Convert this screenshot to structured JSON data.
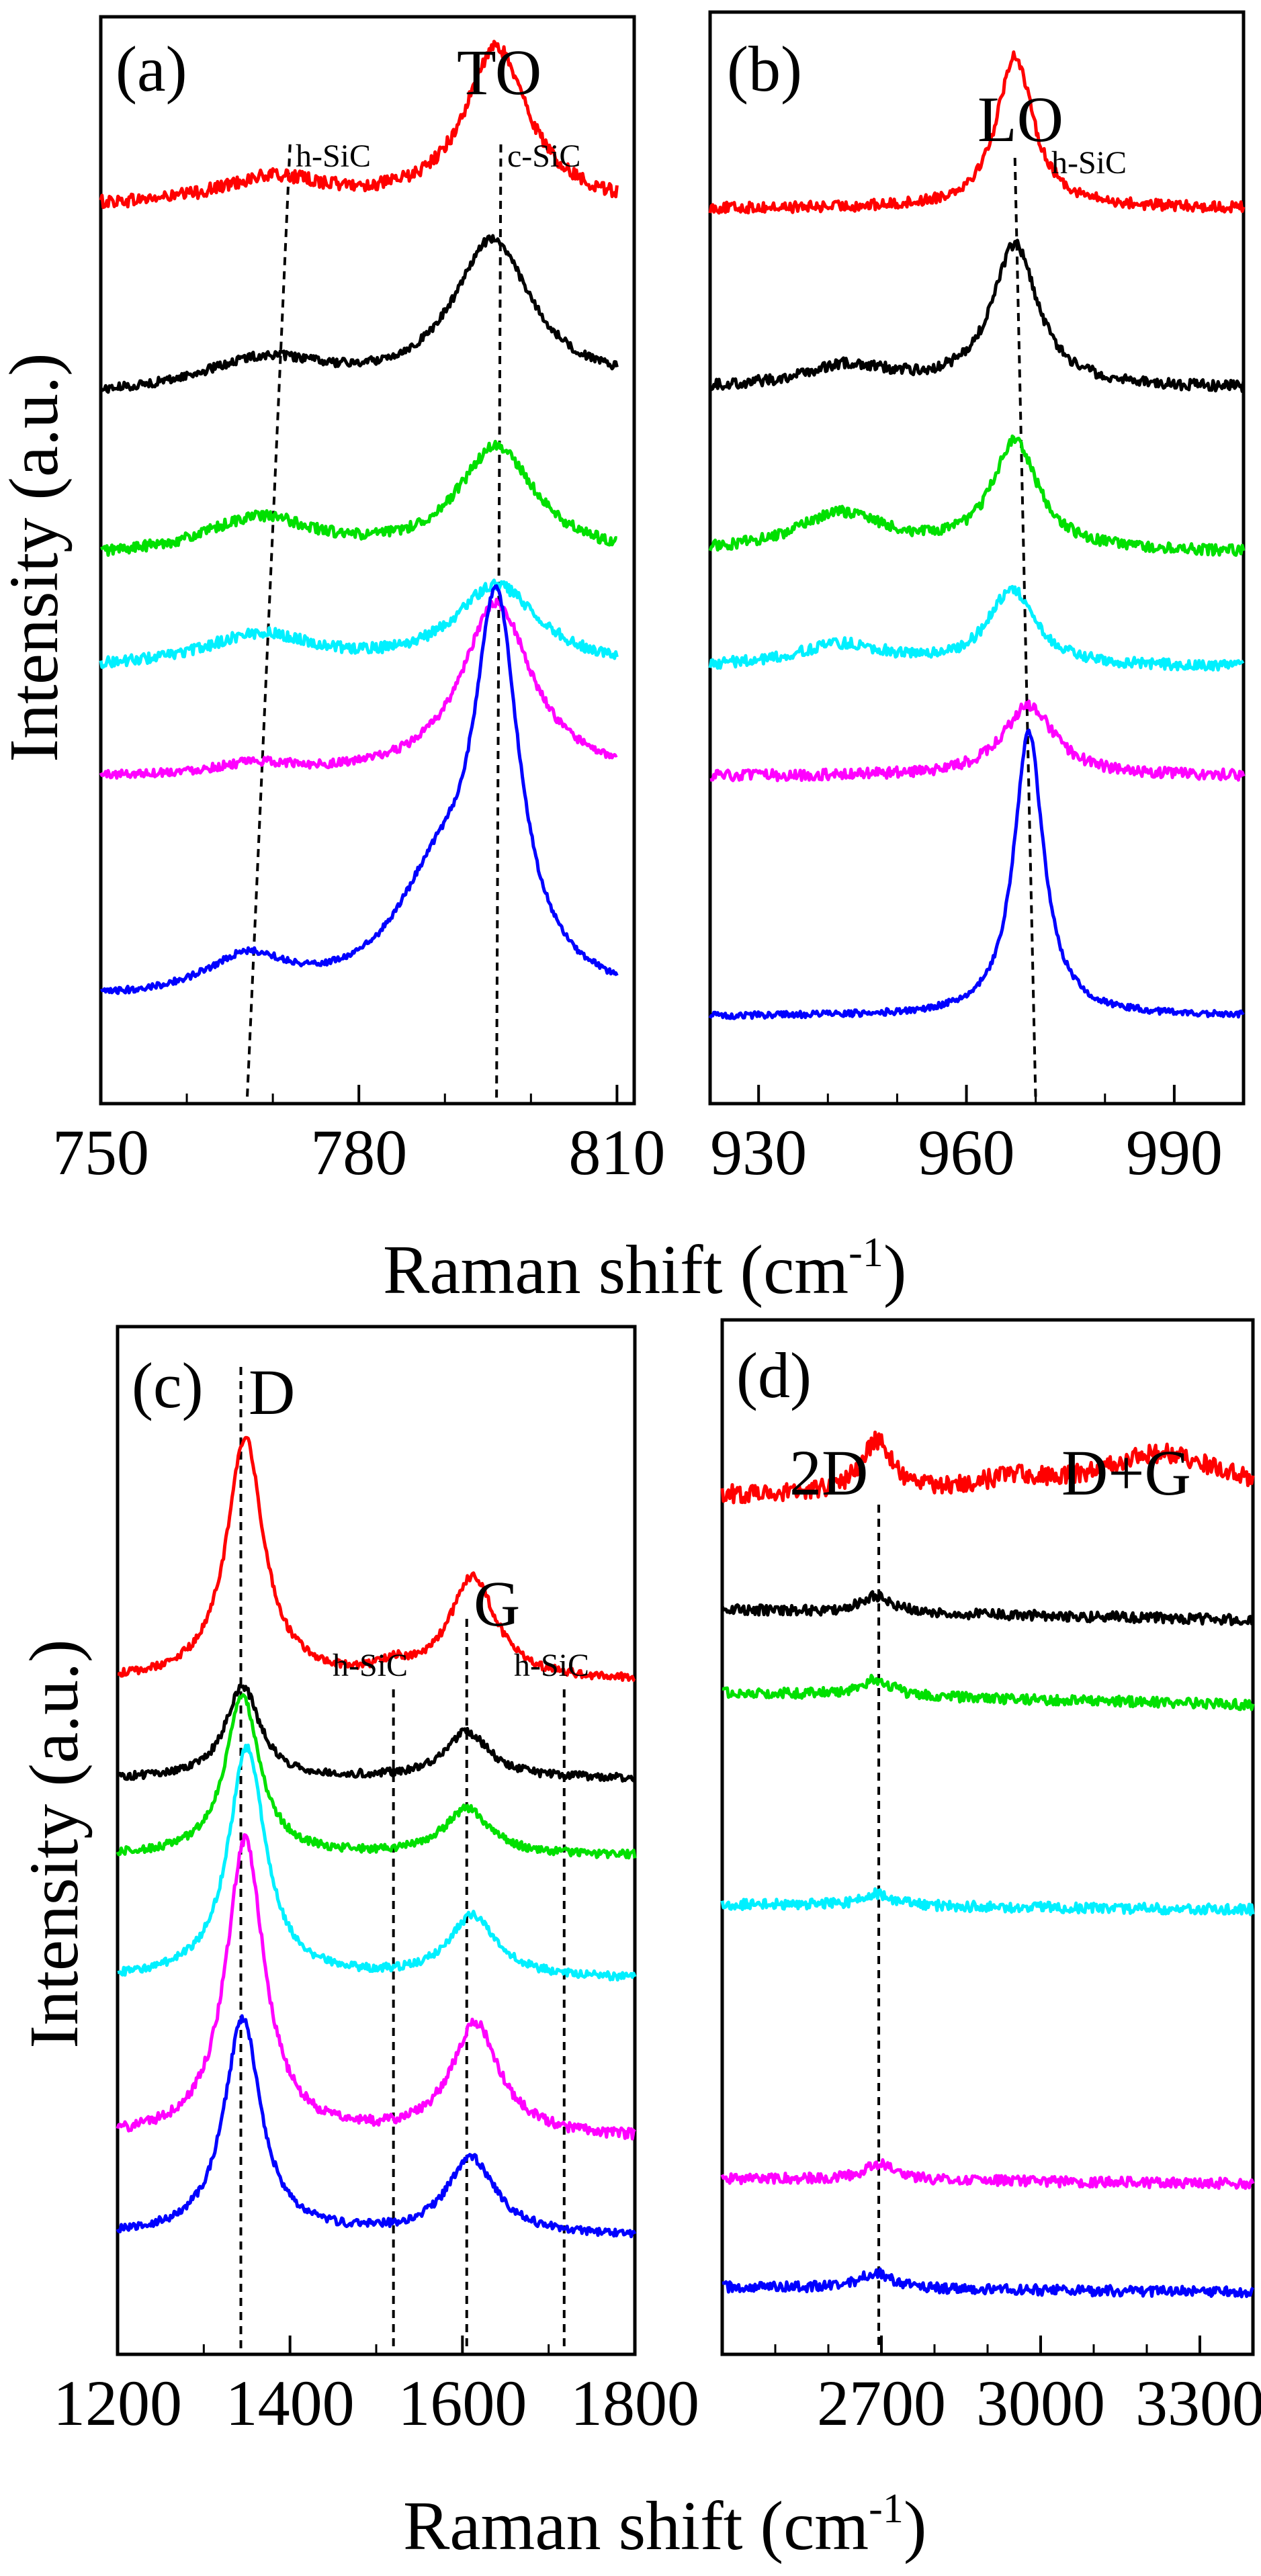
{
  "figure": {
    "x_axis_title_top": "Raman shift (cm",
    "x_axis_title_bottom": "Raman shift (cm",
    "x_axis_title_sup": "-1",
    "x_axis_title_close": ")",
    "y_axis_title_top": "Intensity (a.u.)",
    "y_axis_title_bottom": "Intensity (a.u.)"
  },
  "series_colors": [
    "#ff0000",
    "#000000",
    "#00e000",
    "#00f0ff",
    "#ff00ff",
    "#0000ff"
  ],
  "chart_data": [
    {
      "id": "a",
      "type": "line",
      "panel_label": "(a)",
      "xlim": [
        750,
        812
      ],
      "x_ticks": [
        750,
        780,
        810
      ],
      "x_minor_step": 10,
      "y_ticks": [],
      "xlabel": "Raman shift (cm-1)",
      "ylabel": "Intensity (a.u.)",
      "peak_labels": [
        {
          "text": "TO",
          "x": 796
        }
      ],
      "reference_lines": [
        {
          "label": "h-SiC",
          "x_top": 772,
          "x_bottom": 767
        },
        {
          "label": "c-SiC",
          "x_top": 796.5,
          "x_bottom": 796
        }
      ],
      "x_range": [
        750,
        810
      ],
      "series": [
        {
          "name": "red",
          "color": "#ff0000",
          "baseline": 0.825,
          "noise": 0.006,
          "peaks": [
            {
              "x": 796,
              "h": 0.145,
              "w": 4.5
            },
            {
              "x": 770,
              "h": 0.025,
              "w": 8
            }
          ],
          "tilt": 0.0
        },
        {
          "name": "black",
          "color": "#000000",
          "baseline": 0.65,
          "noise": 0.004,
          "peaks": [
            {
              "x": 795.5,
              "h": 0.135,
              "w": 5.5
            },
            {
              "x": 769,
              "h": 0.03,
              "w": 9
            }
          ],
          "tilt": 0.01
        },
        {
          "name": "green",
          "color": "#00e000",
          "baseline": 0.502,
          "noise": 0.005,
          "peaks": [
            {
              "x": 796,
              "h": 0.1,
              "w": 5.5
            },
            {
              "x": 768.5,
              "h": 0.035,
              "w": 8
            }
          ],
          "tilt": 0.0
        },
        {
          "name": "cyan",
          "color": "#00f0ff",
          "baseline": 0.4,
          "noise": 0.005,
          "peaks": [
            {
              "x": 796,
              "h": 0.075,
              "w": 6
            },
            {
              "x": 768.5,
              "h": 0.03,
              "w": 8
            }
          ],
          "tilt": 0.0
        },
        {
          "name": "magenta",
          "color": "#ff00ff",
          "baseline": 0.3,
          "noise": 0.004,
          "peaks": [
            {
              "x": 796,
              "h": 0.16,
              "w": 5
            },
            {
              "x": 768,
              "h": 0.01,
              "w": 6
            }
          ],
          "tilt": 0.0
        },
        {
          "name": "blue",
          "color": "#0000ff",
          "baseline": 0.095,
          "noise": 0.003,
          "peaks": [
            {
              "x": 796,
              "h": 0.34,
              "w": 3.2
            },
            {
              "x": 789,
              "h": 0.09,
              "w": 6
            },
            {
              "x": 767,
              "h": 0.035,
              "w": 6
            }
          ],
          "tilt": 0.0
        }
      ]
    },
    {
      "id": "b",
      "type": "line",
      "panel_label": "(b)",
      "xlim": [
        923,
        1000
      ],
      "x_ticks": [
        930,
        960,
        990
      ],
      "x_minor_step": 10,
      "y_ticks": [],
      "xlabel": "Raman shift (cm-1)",
      "ylabel": "",
      "peak_labels": [
        {
          "text": "LO",
          "x": 967
        }
      ],
      "reference_lines": [
        {
          "label": "h-SiC",
          "x_top": 967,
          "x_bottom": 970
        }
      ],
      "x_range": [
        923,
        1000
      ],
      "series": [
        {
          "name": "red",
          "color": "#ff0000",
          "baseline": 0.82,
          "noise": 0.005,
          "peaks": [
            {
              "x": 967,
              "h": 0.14,
              "w": 3.2
            }
          ],
          "tilt": 0.0
        },
        {
          "name": "black",
          "color": "#000000",
          "baseline": 0.655,
          "noise": 0.005,
          "peaks": [
            {
              "x": 967,
              "h": 0.13,
              "w": 4
            },
            {
              "x": 943,
              "h": 0.02,
              "w": 8
            }
          ],
          "tilt": 0.0
        },
        {
          "name": "green",
          "color": "#00e000",
          "baseline": 0.505,
          "noise": 0.005,
          "peaks": [
            {
              "x": 967,
              "h": 0.1,
              "w": 4
            },
            {
              "x": 942,
              "h": 0.035,
              "w": 8
            }
          ],
          "tilt": 0.0
        },
        {
          "name": "cyan",
          "color": "#00f0ff",
          "baseline": 0.4,
          "noise": 0.005,
          "peaks": [
            {
              "x": 966.5,
              "h": 0.07,
              "w": 4
            },
            {
              "x": 942,
              "h": 0.02,
              "w": 8
            }
          ],
          "tilt": 0.0
        },
        {
          "name": "magenta",
          "color": "#ff00ff",
          "baseline": 0.3,
          "noise": 0.005,
          "peaks": [
            {
              "x": 969,
              "h": 0.065,
              "w": 4.5
            }
          ],
          "tilt": 0.0
        },
        {
          "name": "blue",
          "color": "#0000ff",
          "baseline": 0.08,
          "noise": 0.003,
          "peaks": [
            {
              "x": 969,
              "h": 0.26,
              "w": 2.6
            }
          ],
          "tilt": 0.0
        }
      ]
    },
    {
      "id": "c",
      "type": "line",
      "panel_label": "(c)",
      "xlim": [
        1200,
        1800
      ],
      "x_ticks": [
        1200,
        1400,
        1600,
        1800
      ],
      "x_minor_step": 100,
      "y_ticks": [],
      "xlabel": "Raman shift (cm-1)",
      "ylabel": "Intensity (a.u.)",
      "peak_labels": [
        {
          "text": "D",
          "x": 1350
        },
        {
          "text": "G",
          "x": 1615
        }
      ],
      "reference_lines": [
        {
          "label": "D",
          "x_top": 1343,
          "x_bottom": 1343
        },
        {
          "label": "h-SiC",
          "x_top": 1520,
          "x_bottom": 1520
        },
        {
          "label": "G",
          "x_top": 1605,
          "x_bottom": 1605
        },
        {
          "label": "h-SiC",
          "x_top": 1718,
          "x_bottom": 1718
        }
      ],
      "x_range": [
        1200,
        1800
      ],
      "series": [
        {
          "name": "red",
          "color": "#ff0000",
          "baseline": 0.655,
          "noise": 0.004,
          "peaks": [
            {
              "x": 1348,
              "h": 0.235,
              "w": 26
            },
            {
              "x": 1612,
              "h": 0.1,
              "w": 32
            },
            {
              "x": 1520,
              "h": 0.01,
              "w": 20
            }
          ],
          "tilt": 0.0
        },
        {
          "name": "black",
          "color": "#000000",
          "baseline": 0.56,
          "noise": 0.004,
          "peaks": [
            {
              "x": 1345,
              "h": 0.09,
              "w": 24
            },
            {
              "x": 1605,
              "h": 0.045,
              "w": 32
            }
          ],
          "tilt": 0.0
        },
        {
          "name": "green",
          "color": "#00e000",
          "baseline": 0.485,
          "noise": 0.004,
          "peaks": [
            {
              "x": 1345,
              "h": 0.155,
              "w": 24
            },
            {
              "x": 1605,
              "h": 0.045,
              "w": 32
            }
          ],
          "tilt": 0.0
        },
        {
          "name": "cyan",
          "color": "#00f0ff",
          "baseline": 0.365,
          "noise": 0.004,
          "peaks": [
            {
              "x": 1350,
              "h": 0.225,
              "w": 26
            },
            {
              "x": 1612,
              "h": 0.06,
              "w": 34
            }
          ],
          "tilt": 0.0
        },
        {
          "name": "magenta",
          "color": "#ff00ff",
          "baseline": 0.21,
          "noise": 0.005,
          "peaks": [
            {
              "x": 1348,
              "h": 0.29,
              "w": 27
            },
            {
              "x": 1615,
              "h": 0.11,
              "w": 34
            }
          ],
          "tilt": 0.0
        },
        {
          "name": "blue",
          "color": "#0000ff",
          "baseline": 0.115,
          "noise": 0.004,
          "peaks": [
            {
              "x": 1345,
              "h": 0.21,
              "w": 26
            },
            {
              "x": 1610,
              "h": 0.075,
              "w": 34
            }
          ],
          "tilt": 0.0
        }
      ]
    },
    {
      "id": "d",
      "type": "line",
      "panel_label": "(d)",
      "xlim": [
        2400,
        3400
      ],
      "x_ticks": [
        2700,
        3000,
        3300
      ],
      "x_minor_step": 100,
      "y_ticks": [],
      "xlabel": "Raman shift (cm-1)",
      "ylabel": "",
      "peak_labels": [
        {
          "text": "2D",
          "x": 2690
        },
        {
          "text": "D+G",
          "x": 3150
        }
      ],
      "reference_lines": [
        {
          "label": "2D",
          "x_top": 2695,
          "x_bottom": 2695
        }
      ],
      "x_range": [
        2400,
        3400
      ],
      "series": [
        {
          "name": "red",
          "color": "#ff0000",
          "baseline": 0.83,
          "noise": 0.009,
          "peaks": [
            {
              "x": 2690,
              "h": 0.05,
              "w": 35
            },
            {
              "x": 3230,
              "h": 0.04,
              "w": 140
            },
            {
              "x": 2950,
              "h": 0.012,
              "w": 80
            }
          ],
          "tilt": 0.0
        },
        {
          "name": "black",
          "color": "#000000",
          "baseline": 0.72,
          "noise": 0.005,
          "peaks": [
            {
              "x": 2690,
              "h": 0.016,
              "w": 35
            }
          ],
          "tilt": -0.01
        },
        {
          "name": "green",
          "color": "#00e000",
          "baseline": 0.64,
          "noise": 0.005,
          "peaks": [
            {
              "x": 2690,
              "h": 0.016,
              "w": 35
            }
          ],
          "tilt": -0.012
        },
        {
          "name": "cyan",
          "color": "#00f0ff",
          "baseline": 0.435,
          "noise": 0.005,
          "peaks": [
            {
              "x": 2690,
              "h": 0.012,
              "w": 35
            }
          ],
          "tilt": -0.005
        },
        {
          "name": "magenta",
          "color": "#ff00ff",
          "baseline": 0.17,
          "noise": 0.005,
          "peaks": [
            {
              "x": 2695,
              "h": 0.016,
              "w": 35
            }
          ],
          "tilt": -0.005
        },
        {
          "name": "blue",
          "color": "#0000ff",
          "baseline": 0.065,
          "noise": 0.005,
          "peaks": [
            {
              "x": 2690,
              "h": 0.016,
              "w": 35
            }
          ],
          "tilt": -0.005
        }
      ]
    }
  ],
  "labels": {
    "a_tag": "(a)",
    "a_peak": "TO",
    "a_ref1": "h-SiC",
    "a_ref2": "c-SiC",
    "b_tag": "(b)",
    "b_peak": "LO",
    "b_ref1": "h-SiC",
    "c_tag": "(c)",
    "c_peak_d": "D",
    "c_peak_g": "G",
    "c_ref1": "h-SiC",
    "c_ref2": "h-SiC",
    "d_tag": "(d)",
    "d_peak_2d": "2D",
    "d_peak_dg": "D+G"
  }
}
